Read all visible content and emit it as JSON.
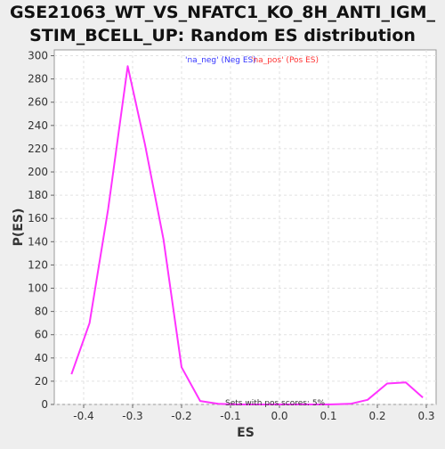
{
  "chart_data": {
    "type": "line",
    "title_line1": "GSE21063_WT_VS_NFATC1_KO_8H_ANTI_IGM_",
    "title_line2": "STIM_BCELL_UP: Random ES distribution",
    "xlabel": "ES",
    "ylabel": "P(ES)",
    "xlim": [
      -0.46,
      0.32
    ],
    "ylim": [
      0,
      305
    ],
    "xticks": [
      "-0.4",
      "-0.3",
      "-0.2",
      "-0.1",
      "0.0",
      "0.1",
      "0.2",
      "0.3"
    ],
    "xtick_values": [
      -0.4,
      -0.3,
      -0.2,
      -0.1,
      0.0,
      0.1,
      0.2,
      0.3
    ],
    "yticks": [
      "0",
      "20",
      "40",
      "60",
      "80",
      "100",
      "120",
      "140",
      "160",
      "180",
      "200",
      "220",
      "240",
      "260",
      "280",
      "300"
    ],
    "ytick_values": [
      0,
      20,
      40,
      60,
      80,
      100,
      120,
      140,
      160,
      180,
      200,
      220,
      240,
      260,
      280,
      300
    ],
    "grid": true,
    "legend": {
      "placement": "top-center",
      "neg_label": "'na_neg' (Neg ES)",
      "pos_label": "'na_pos' (Pos ES)",
      "neg_color": "#3333ff",
      "pos_color": "#ff3333"
    },
    "annotation": "Sets with pos scores: 5%",
    "series": [
      {
        "color": "#ff33ff",
        "x": [
          -0.425,
          -0.388,
          -0.35,
          -0.31,
          -0.275,
          -0.237,
          -0.2,
          -0.162,
          -0.125,
          -0.088,
          -0.05,
          0.0,
          0.05,
          0.1,
          0.145,
          0.18,
          0.22,
          0.258,
          0.293
        ],
        "y": [
          26,
          70,
          168,
          291,
          224,
          142,
          32,
          3,
          0.5,
          0,
          0,
          0,
          0,
          0,
          0.5,
          4,
          18,
          19,
          6
        ]
      }
    ]
  }
}
